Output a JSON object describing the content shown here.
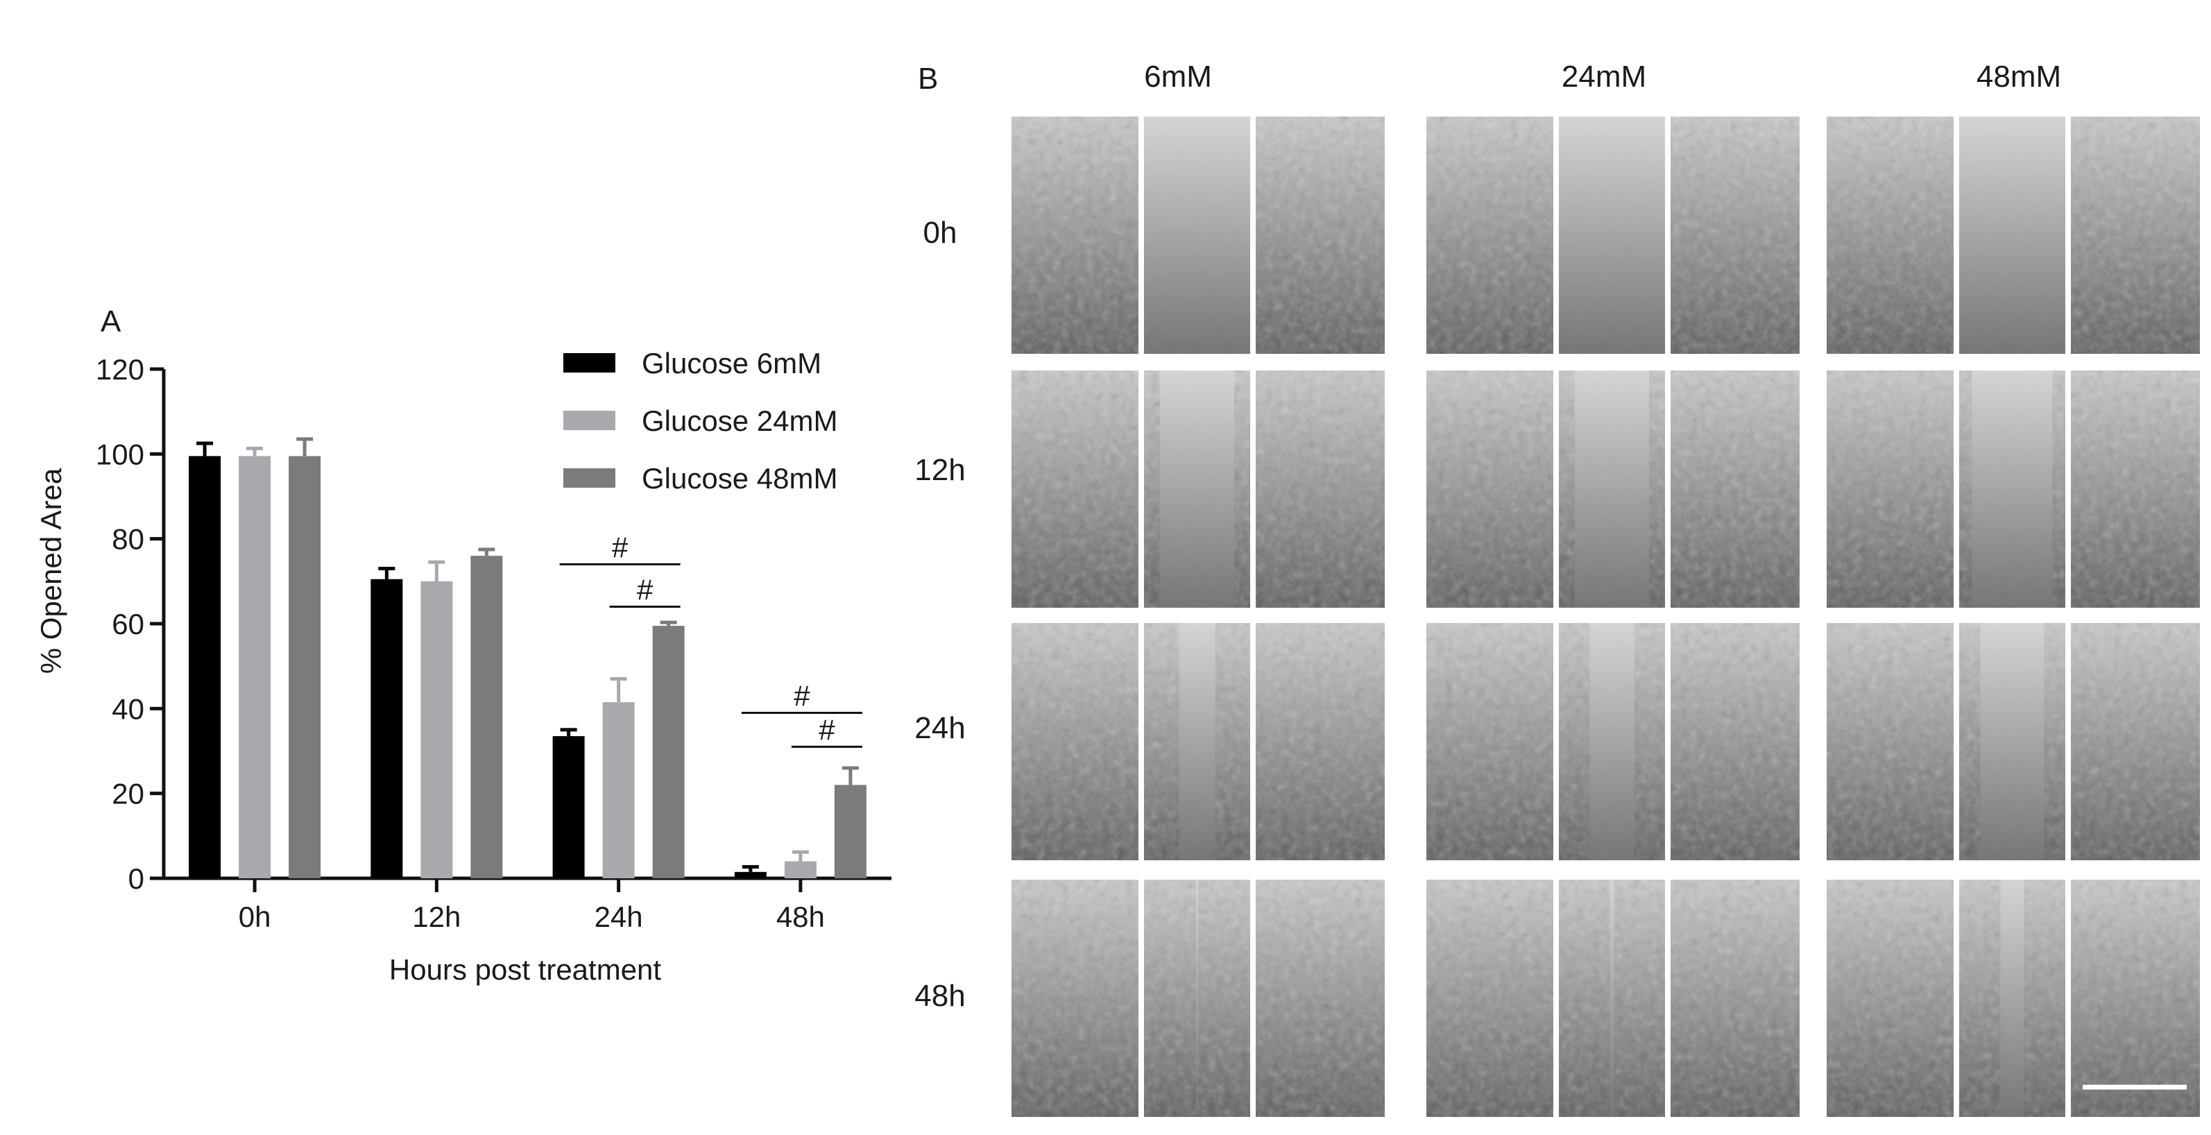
{
  "panel_labels": {
    "a": "A",
    "b": "B"
  },
  "chart_data": {
    "type": "bar",
    "title": "",
    "xlabel": "Hours post treatment",
    "ylabel": "% Opened Area",
    "ylim": [
      0,
      120
    ],
    "yticks": [
      0,
      20,
      40,
      60,
      80,
      100,
      120
    ],
    "categories": [
      "0h",
      "12h",
      "24h",
      "48h"
    ],
    "legend_position": "top-right",
    "series": [
      {
        "name": "Glucose 6mM",
        "color": "#000000",
        "values": [
          99.5,
          70.5,
          33.5,
          1.5
        ],
        "errors": [
          3.0,
          2.5,
          1.5,
          1.2
        ]
      },
      {
        "name": "Glucose 24mM",
        "color": "#a9a9ad",
        "values": [
          99.5,
          70.0,
          41.5,
          4.0
        ],
        "errors": [
          1.8,
          4.5,
          5.5,
          2.2
        ]
      },
      {
        "name": "Glucose 48mM",
        "color": "#7b7b7d",
        "values": [
          99.5,
          76.0,
          59.5,
          22.0
        ],
        "errors": [
          4.0,
          1.5,
          0.8,
          4.0
        ]
      }
    ],
    "significance": [
      {
        "category": "24h",
        "from_series": 0,
        "to_series": 2,
        "symbol": "#",
        "y": 74
      },
      {
        "category": "24h",
        "from_series": 1,
        "to_series": 2,
        "symbol": "#",
        "y": 64
      },
      {
        "category": "48h",
        "from_series": 0,
        "to_series": 2,
        "symbol": "#",
        "y": 39
      },
      {
        "category": "48h",
        "from_series": 1,
        "to_series": 2,
        "symbol": "#",
        "y": 31
      }
    ]
  },
  "micrographs": {
    "columns": [
      "6mM",
      "24mM",
      "48mM"
    ],
    "rows": [
      "0h",
      "12h",
      "24h",
      "48h"
    ],
    "gap_closure": [
      [
        0.0,
        0.0,
        0.0
      ],
      [
        0.3,
        0.3,
        0.24
      ],
      [
        0.66,
        0.58,
        0.4
      ],
      [
        0.98,
        0.96,
        0.78
      ]
    ],
    "scale_bar": true
  }
}
